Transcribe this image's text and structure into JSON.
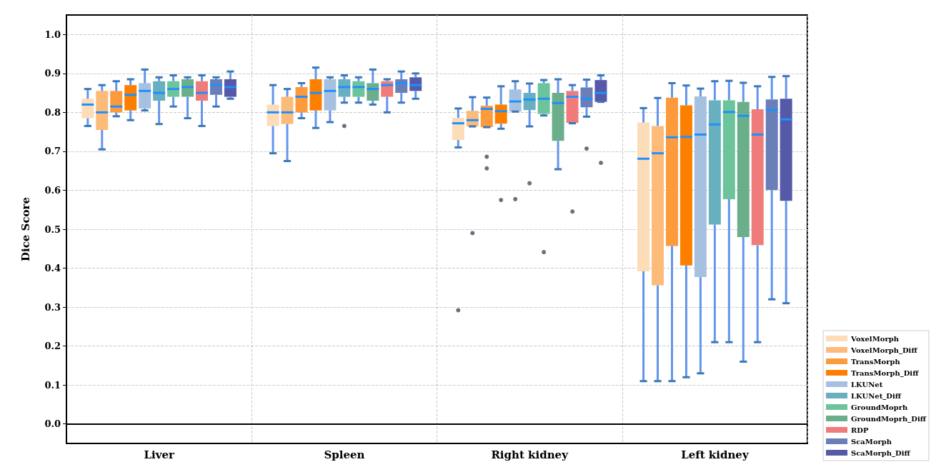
{
  "chart_data": {
    "type": "box",
    "ylabel": "Dice Score",
    "categories": [
      "Liver",
      "Spleen",
      "Right kidney",
      "Left kidney"
    ],
    "ylim": [
      -0.05,
      1.05
    ],
    "yticks": [
      {
        "value": 0,
        "label": "0.0"
      },
      {
        "value": 0.1,
        "label": "0.1"
      },
      {
        "value": 0.2,
        "label": "0.2"
      },
      {
        "value": 0.3,
        "label": "0.3"
      },
      {
        "value": 0.4,
        "label": "0.4"
      },
      {
        "value": 0.5,
        "label": "0.5"
      },
      {
        "value": 0.6,
        "label": "0.6"
      },
      {
        "value": 0.7,
        "label": "0.7"
      },
      {
        "value": 0.8,
        "label": "0.8"
      },
      {
        "value": 0.9,
        "label": "0.9"
      },
      {
        "value": 1,
        "label": "1.0"
      }
    ],
    "grid": true,
    "legend": "bottom right",
    "series": [
      {
        "name": "VoxelMorph",
        "color": "#fddcb8",
        "boxes": [
          {
            "low": 0.765,
            "q1": 0.785,
            "median": 0.82,
            "q3": 0.835,
            "high": 0.86
          },
          {
            "low": 0.695,
            "q1": 0.765,
            "median": 0.8,
            "q3": 0.82,
            "high": 0.87
          },
          {
            "low": 0.71,
            "q1": 0.729,
            "median": 0.772,
            "q3": 0.786,
            "high": 0.81,
            "outliers": [
              0.293
            ]
          },
          {
            "low": 0.11,
            "q1": 0.392,
            "median": 0.681,
            "q3": 0.774,
            "high": 0.811
          }
        ]
      },
      {
        "name": "VoxelMorph_Diff",
        "color": "#fdbb7a",
        "boxes": [
          {
            "low": 0.705,
            "q1": 0.755,
            "median": 0.8,
            "q3": 0.855,
            "high": 0.87
          },
          {
            "low": 0.675,
            "q1": 0.77,
            "median": 0.8,
            "q3": 0.84,
            "high": 0.86
          },
          {
            "low": 0.764,
            "q1": 0.764,
            "median": 0.78,
            "q3": 0.804,
            "high": 0.839,
            "outliers": [
              0.49
            ]
          },
          {
            "low": 0.11,
            "q1": 0.356,
            "median": 0.695,
            "q3": 0.765,
            "high": 0.837
          }
        ]
      },
      {
        "name": "TransMorph",
        "color": "#fd9a3c",
        "boxes": [
          {
            "low": 0.79,
            "q1": 0.8,
            "median": 0.815,
            "q3": 0.855,
            "high": 0.88
          },
          {
            "low": 0.785,
            "q1": 0.8,
            "median": 0.84,
            "q3": 0.865,
            "high": 0.875
          },
          {
            "low": 0.762,
            "q1": 0.762,
            "median": 0.809,
            "q3": 0.817,
            "high": 0.838,
            "outliers": [
              0.687,
              0.657
            ]
          },
          {
            "low": 0.11,
            "q1": 0.457,
            "median": 0.736,
            "q3": 0.838,
            "high": 0.875
          }
        ]
      },
      {
        "name": "TransMorph_Diff",
        "color": "#fd7f00",
        "boxes": [
          {
            "low": 0.78,
            "q1": 0.805,
            "median": 0.845,
            "q3": 0.87,
            "high": 0.885
          },
          {
            "low": 0.76,
            "q1": 0.805,
            "median": 0.85,
            "q3": 0.885,
            "high": 0.915
          },
          {
            "low": 0.758,
            "q1": 0.771,
            "median": 0.803,
            "q3": 0.82,
            "high": 0.867,
            "outliers": [
              0.575
            ]
          },
          {
            "low": 0.12,
            "q1": 0.407,
            "median": 0.737,
            "q3": 0.818,
            "high": 0.869
          }
        ]
      },
      {
        "name": "LKUNet",
        "color": "#a6c1e0",
        "boxes": [
          {
            "low": 0.805,
            "q1": 0.81,
            "median": 0.855,
            "q3": 0.875,
            "high": 0.91
          },
          {
            "low": 0.775,
            "q1": 0.805,
            "median": 0.855,
            "q3": 0.885,
            "high": 0.89
          },
          {
            "low": 0.802,
            "q1": 0.802,
            "median": 0.828,
            "q3": 0.859,
            "high": 0.88,
            "outliers": [
              0.578
            ]
          },
          {
            "low": 0.13,
            "q1": 0.377,
            "median": 0.743,
            "q3": 0.841,
            "high": 0.861
          }
        ]
      },
      {
        "name": "LKUNet_Diff",
        "color": "#68afc0",
        "boxes": [
          {
            "low": 0.77,
            "q1": 0.83,
            "median": 0.85,
            "q3": 0.88,
            "high": 0.89
          },
          {
            "low": 0.825,
            "q1": 0.84,
            "median": 0.865,
            "q3": 0.885,
            "high": 0.895,
            "outliers": [
              0.765
            ]
          },
          {
            "low": 0.764,
            "q1": 0.806,
            "median": 0.833,
            "q3": 0.85,
            "high": 0.874,
            "outliers": [
              0.618
            ]
          },
          {
            "low": 0.21,
            "q1": 0.512,
            "median": 0.769,
            "q3": 0.831,
            "high": 0.88
          }
        ]
      },
      {
        "name": "GroundMoprh",
        "color": "#6cc49a",
        "boxes": [
          {
            "low": 0.815,
            "q1": 0.84,
            "median": 0.86,
            "q3": 0.88,
            "high": 0.895
          },
          {
            "low": 0.825,
            "q1": 0.84,
            "median": 0.865,
            "q3": 0.88,
            "high": 0.89
          },
          {
            "low": 0.792,
            "q1": 0.796,
            "median": 0.835,
            "q3": 0.875,
            "high": 0.883,
            "outliers": [
              0.442
            ]
          },
          {
            "low": 0.21,
            "q1": 0.577,
            "median": 0.801,
            "q3": 0.831,
            "high": 0.881
          }
        ]
      },
      {
        "name": "GroundMoprh_Diff",
        "color": "#6aaf8a",
        "boxes": [
          {
            "low": 0.785,
            "q1": 0.84,
            "median": 0.865,
            "q3": 0.885,
            "high": 0.89
          },
          {
            "low": 0.82,
            "q1": 0.83,
            "median": 0.86,
            "q3": 0.875,
            "high": 0.91
          },
          {
            "low": 0.654,
            "q1": 0.727,
            "median": 0.824,
            "q3": 0.85,
            "high": 0.885
          },
          {
            "low": 0.16,
            "q1": 0.48,
            "median": 0.791,
            "q3": 0.827,
            "high": 0.876
          }
        ]
      },
      {
        "name": "RDP",
        "color": "#f07b7b",
        "boxes": [
          {
            "low": 0.765,
            "q1": 0.83,
            "median": 0.85,
            "q3": 0.88,
            "high": 0.895
          },
          {
            "low": 0.8,
            "q1": 0.84,
            "median": 0.87,
            "q3": 0.88,
            "high": 0.885
          },
          {
            "low": 0.772,
            "q1": 0.773,
            "median": 0.84,
            "q3": 0.855,
            "high": 0.87,
            "outliers": [
              0.547
            ]
          },
          {
            "low": 0.21,
            "q1": 0.459,
            "median": 0.743,
            "q3": 0.808,
            "high": 0.867
          }
        ]
      },
      {
        "name": "ScaMorph",
        "color": "#6a7fb8",
        "boxes": [
          {
            "low": 0.815,
            "q1": 0.845,
            "median": 0.87,
            "q3": 0.885,
            "high": 0.89
          },
          {
            "low": 0.825,
            "q1": 0.85,
            "median": 0.875,
            "q3": 0.885,
            "high": 0.905
          },
          {
            "low": 0.789,
            "q1": 0.813,
            "median": 0.835,
            "q3": 0.864,
            "high": 0.884,
            "outliers": [
              0.707
            ]
          },
          {
            "low": 0.32,
            "q1": 0.601,
            "median": 0.806,
            "q3": 0.833,
            "high": 0.891
          }
        ]
      },
      {
        "name": "ScaMorph_Diff",
        "color": "#5658a8",
        "boxes": [
          {
            "low": 0.835,
            "q1": 0.84,
            "median": 0.865,
            "q3": 0.885,
            "high": 0.905
          },
          {
            "low": 0.835,
            "q1": 0.855,
            "median": 0.87,
            "q3": 0.89,
            "high": 0.9
          },
          {
            "low": 0.827,
            "q1": 0.827,
            "median": 0.85,
            "q3": 0.883,
            "high": 0.895,
            "outliers": [
              0.672
            ]
          },
          {
            "low": 0.31,
            "q1": 0.573,
            "median": 0.782,
            "q3": 0.835,
            "high": 0.893
          }
        ]
      }
    ]
  }
}
